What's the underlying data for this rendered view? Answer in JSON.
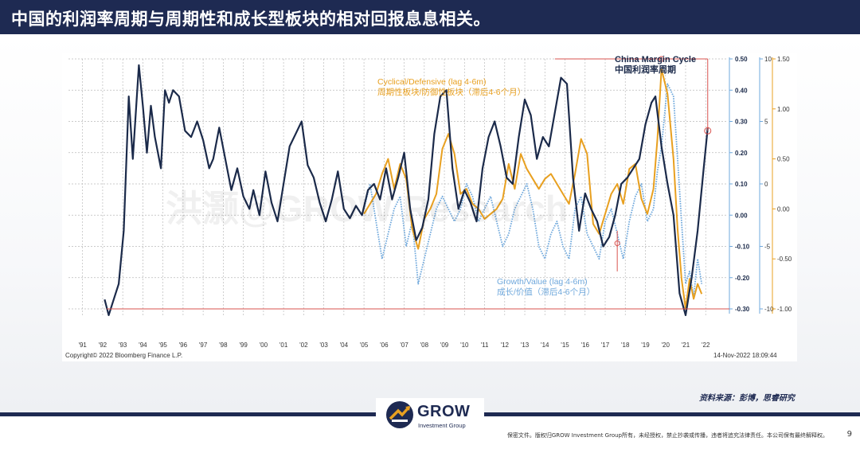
{
  "page": {
    "title": "中国的利润率周期与周期性和成长型板块的相对回报息息相关。",
    "source": "资料来源：彭博，思睿研究",
    "logo_text": "GROW",
    "logo_sub": "Investment Group",
    "disclaimer": "保密文件。版权归GROW Investment Group所有，未经授权，禁止抄袭或传播，违者将追究法律责任。本公司保有最终解释权。",
    "page_number": "9",
    "watermark": "洪灏@GROW Research",
    "colors": {
      "header": "#1e2a52",
      "margin_cycle": "#1b2a4a",
      "cyclical": "#e8a020",
      "growth": "#6fa8dc",
      "accent_red": "#d9534f"
    }
  },
  "chart_data": {
    "type": "line",
    "series": [
      {
        "name": "China Margin Cycle 中国利润率周期",
        "axis": "inner-right (-0.30 to 0.50)",
        "x": [
          1992.6,
          1992.8,
          1993.0,
          1993.3,
          1993.55,
          1993.8,
          1994.0,
          1994.3,
          1994.5,
          1994.7,
          1994.9,
          1995.1,
          1995.4,
          1995.6,
          1995.8,
          1996.0,
          1996.3,
          1996.6,
          1996.9,
          1997.2,
          1997.5,
          1997.8,
          1998.0,
          1998.3,
          1998.6,
          1998.9,
          1999.2,
          1999.5,
          1999.8,
          2000.0,
          2000.3,
          2000.6,
          2000.9,
          2001.2,
          2001.5,
          2001.8,
          2002.1,
          2002.4,
          2002.7,
          2003.0,
          2003.3,
          2003.6,
          2003.9,
          2004.2,
          2004.5,
          2004.8,
          2005.1,
          2005.4,
          2005.7,
          2006.0,
          2006.3,
          2006.6,
          2006.9,
          2007.2,
          2007.5,
          2007.8,
          2008.1,
          2008.4,
          2008.7,
          2009.0,
          2009.3,
          2009.6,
          2009.9,
          2010.2,
          2010.5,
          2010.8,
          2011.1,
          2011.4,
          2011.7,
          2012.0,
          2012.3,
          2012.6,
          2012.9,
          2013.2,
          2013.5,
          2013.8,
          2014.1,
          2014.4,
          2014.7,
          2015.0,
          2015.3,
          2015.6,
          2015.9,
          2016.2,
          2016.5,
          2016.8,
          2017.1,
          2017.4,
          2017.7,
          2018.0,
          2018.3,
          2018.6,
          2018.9,
          2019.2,
          2019.5,
          2019.8,
          2020.0,
          2020.3,
          2020.6,
          2020.9,
          2021.2,
          2021.5,
          2021.8,
          2022.1,
          2022.4,
          2022.6
        ],
        "y": [
          -0.27,
          -0.32,
          -0.28,
          -0.22,
          -0.05,
          0.38,
          0.18,
          0.48,
          0.35,
          0.2,
          0.35,
          0.25,
          0.15,
          0.4,
          0.36,
          0.4,
          0.38,
          0.27,
          0.25,
          0.3,
          0.24,
          0.15,
          0.18,
          0.28,
          0.18,
          0.08,
          0.15,
          0.06,
          0.02,
          0.08,
          0.0,
          0.14,
          0.04,
          -0.02,
          0.1,
          0.22,
          0.26,
          0.3,
          0.16,
          0.12,
          0.04,
          -0.02,
          0.05,
          0.14,
          0.02,
          -0.01,
          0.03,
          0.0,
          0.08,
          0.1,
          0.05,
          0.15,
          0.05,
          0.12,
          0.2,
          0.02,
          -0.08,
          -0.04,
          0.05,
          0.26,
          0.38,
          0.4,
          0.15,
          0.02,
          0.08,
          0.04,
          -0.02,
          0.15,
          0.25,
          0.3,
          0.22,
          0.12,
          0.1,
          0.25,
          0.37,
          0.32,
          0.18,
          0.25,
          0.22,
          0.33,
          0.44,
          0.42,
          0.12,
          -0.05,
          0.07,
          0.02,
          -0.02,
          -0.1,
          -0.07,
          0.0,
          0.1,
          0.12,
          0.15,
          0.18,
          0.29,
          0.36,
          0.38,
          0.22,
          0.1,
          0.0,
          -0.25,
          -0.32,
          -0.2,
          -0.05,
          0.15,
          0.28
        ]
      },
      {
        "name": "Cyclical/Defensive (lag 4-6m) 周期性板块/防御性板块（滞后4-6个月）",
        "axis": "outer-right (-1.00 to 1.50)",
        "x": [
          2005.5,
          2005.8,
          2006.1,
          2006.4,
          2006.7,
          2007.0,
          2007.3,
          2007.6,
          2007.9,
          2008.2,
          2008.5,
          2008.8,
          2009.1,
          2009.4,
          2009.7,
          2010.0,
          2010.3,
          2010.6,
          2010.9,
          2011.2,
          2011.5,
          2011.8,
          2012.1,
          2012.4,
          2012.7,
          2013.0,
          2013.3,
          2013.6,
          2013.9,
          2014.2,
          2014.5,
          2014.8,
          2015.1,
          2015.4,
          2015.7,
          2016.0,
          2016.3,
          2016.6,
          2016.9,
          2017.2,
          2017.5,
          2017.8,
          2018.1,
          2018.4,
          2018.7,
          2019.0,
          2019.3,
          2019.6,
          2019.9,
          2020.1,
          2020.3,
          2020.6,
          2020.9,
          2021.1,
          2021.3,
          2021.5,
          2021.7,
          2021.9,
          2022.1,
          2022.3
        ],
        "y": [
          -0.05,
          0.05,
          0.15,
          0.35,
          0.5,
          0.2,
          0.45,
          0.3,
          -0.2,
          -0.4,
          -0.1,
          0.0,
          0.15,
          0.6,
          0.75,
          0.55,
          0.15,
          0.2,
          0.05,
          0.0,
          -0.1,
          -0.05,
          0.0,
          0.1,
          0.45,
          0.2,
          0.55,
          0.4,
          0.3,
          0.2,
          0.3,
          0.35,
          0.25,
          0.15,
          0.05,
          0.35,
          0.7,
          0.55,
          -0.15,
          -0.25,
          -0.05,
          0.15,
          0.25,
          0.05,
          0.4,
          0.45,
          0.1,
          -0.05,
          0.2,
          0.7,
          1.4,
          1.15,
          0.5,
          -0.2,
          -0.7,
          -1.0,
          -0.7,
          -0.9,
          -0.75,
          -0.85
        ]
      },
      {
        "name": "Growth/Value (lag 4-6m) 成长/价值（滞后4-6个月）",
        "axis": "middle-right (-10 to 10)",
        "x": [
          2005.5,
          2005.8,
          2006.1,
          2006.4,
          2006.7,
          2007.0,
          2007.3,
          2007.6,
          2007.9,
          2008.2,
          2008.5,
          2008.8,
          2009.1,
          2009.4,
          2009.7,
          2010.0,
          2010.3,
          2010.6,
          2010.9,
          2011.2,
          2011.5,
          2011.8,
          2012.1,
          2012.4,
          2012.7,
          2013.0,
          2013.3,
          2013.6,
          2013.9,
          2014.2,
          2014.5,
          2014.8,
          2015.1,
          2015.4,
          2015.7,
          2016.0,
          2016.3,
          2016.6,
          2016.9,
          2017.2,
          2017.5,
          2017.8,
          2018.1,
          2018.4,
          2018.7,
          2019.0,
          2019.3,
          2019.6,
          2019.9,
          2020.1,
          2020.3,
          2020.6,
          2020.9,
          2021.1,
          2021.3,
          2021.5,
          2021.7,
          2021.9,
          2022.1,
          2022.3
        ],
        "y": [
          -2,
          0,
          -3,
          -6,
          -4,
          -2,
          -1,
          -5,
          -3,
          -8,
          -6,
          -4,
          -2,
          -1,
          -2,
          -3,
          -2,
          0,
          -1,
          -3,
          -2,
          -1,
          -3,
          -5,
          -4,
          -2,
          -1,
          0,
          -2,
          -5,
          -6,
          -4,
          -3,
          -5,
          -6,
          -2,
          -1,
          -4,
          -5,
          -6,
          -3,
          -2,
          -4,
          -6,
          -3,
          -1,
          0,
          -3,
          -2,
          1,
          3,
          8,
          7,
          2,
          -3,
          -8,
          -7,
          -9,
          -6,
          -8
        ]
      }
    ],
    "axes": {
      "x_ticks": [
        "'91",
        "'92",
        "'93",
        "'94",
        "'95",
        "'96",
        "'97",
        "'98",
        "'99",
        "'00",
        "'01",
        "'02",
        "'03",
        "'04",
        "'05",
        "'06",
        "'07",
        "'08",
        "'09",
        "'10",
        "'11",
        "'12",
        "'13",
        "'14",
        "'15",
        "'16",
        "'17",
        "'18",
        "'19",
        "'20",
        "'21",
        "'22"
      ],
      "xlim": [
        1990.8,
        2023.6
      ],
      "y_inner_ticks": [
        "0.50",
        "0.40",
        "0.30",
        "0.20",
        "0.10",
        "0.00",
        "-0.10",
        "-0.20",
        "-0.30"
      ],
      "ylim_inner": [
        -0.3,
        0.5
      ],
      "y_middle_ticks": [
        "10",
        "5",
        "0",
        "-5",
        "-10"
      ],
      "ylim_middle": [
        -10,
        10
      ],
      "y_outer_ticks": [
        "1.50",
        "1.00",
        "0.50",
        "0.00",
        "-0.50",
        "-1.00"
      ],
      "ylim_outer": [
        -1.0,
        1.5
      ],
      "grid": true
    },
    "annotations": {
      "series1_label_en": "China Margin Cycle",
      "series1_label_cn": "中国利润率周期",
      "series2_label_en": "Cyclical/Defensive (lag 4-6m)",
      "series2_label_cn": "周期性板块/防御性板块（滞后4-6个月）",
      "series3_label_en": "Growth/Value (lag 4-6m)",
      "series3_label_cn": "成长/价值（滞后4-6个月）",
      "copyright": "Copyright© 2022 Bloomberg Finance L.P.",
      "timestamp": "14-Nov-2022 18:09:44"
    }
  }
}
